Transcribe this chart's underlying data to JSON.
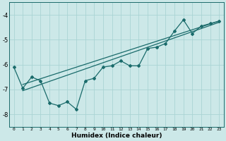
{
  "xlabel": "Humidex (Indice chaleur)",
  "bg_color": "#cce8e8",
  "line_color": "#1a6b6b",
  "grid_color": "#aad4d4",
  "xlim": [
    -0.5,
    23.5
  ],
  "ylim": [
    -8.5,
    -3.5
  ],
  "yticks": [
    -8,
    -7,
    -6,
    -5,
    -4
  ],
  "xticks": [
    0,
    1,
    2,
    3,
    4,
    5,
    6,
    7,
    8,
    9,
    10,
    11,
    12,
    13,
    14,
    15,
    16,
    17,
    18,
    19,
    20,
    21,
    22,
    23
  ],
  "line1_x": [
    0,
    1,
    2,
    3,
    4,
    5,
    6,
    7,
    8,
    9,
    10,
    11,
    12,
    13,
    14,
    15,
    16,
    17,
    18,
    19,
    20,
    21,
    22,
    23
  ],
  "line1_y": [
    -6.1,
    -6.95,
    -6.5,
    -6.65,
    -7.55,
    -7.65,
    -7.5,
    -7.8,
    -6.65,
    -6.55,
    -6.1,
    -6.05,
    -5.85,
    -6.05,
    -6.05,
    -5.35,
    -5.3,
    -5.15,
    -4.65,
    -4.2,
    -4.75,
    -4.45,
    -4.35,
    -4.25
  ],
  "line2_x": [
    1,
    23
  ],
  "line2_y": [
    -6.8,
    -4.25
  ],
  "line3_x": [
    1,
    23
  ],
  "line3_y": [
    -7.05,
    -4.3
  ]
}
